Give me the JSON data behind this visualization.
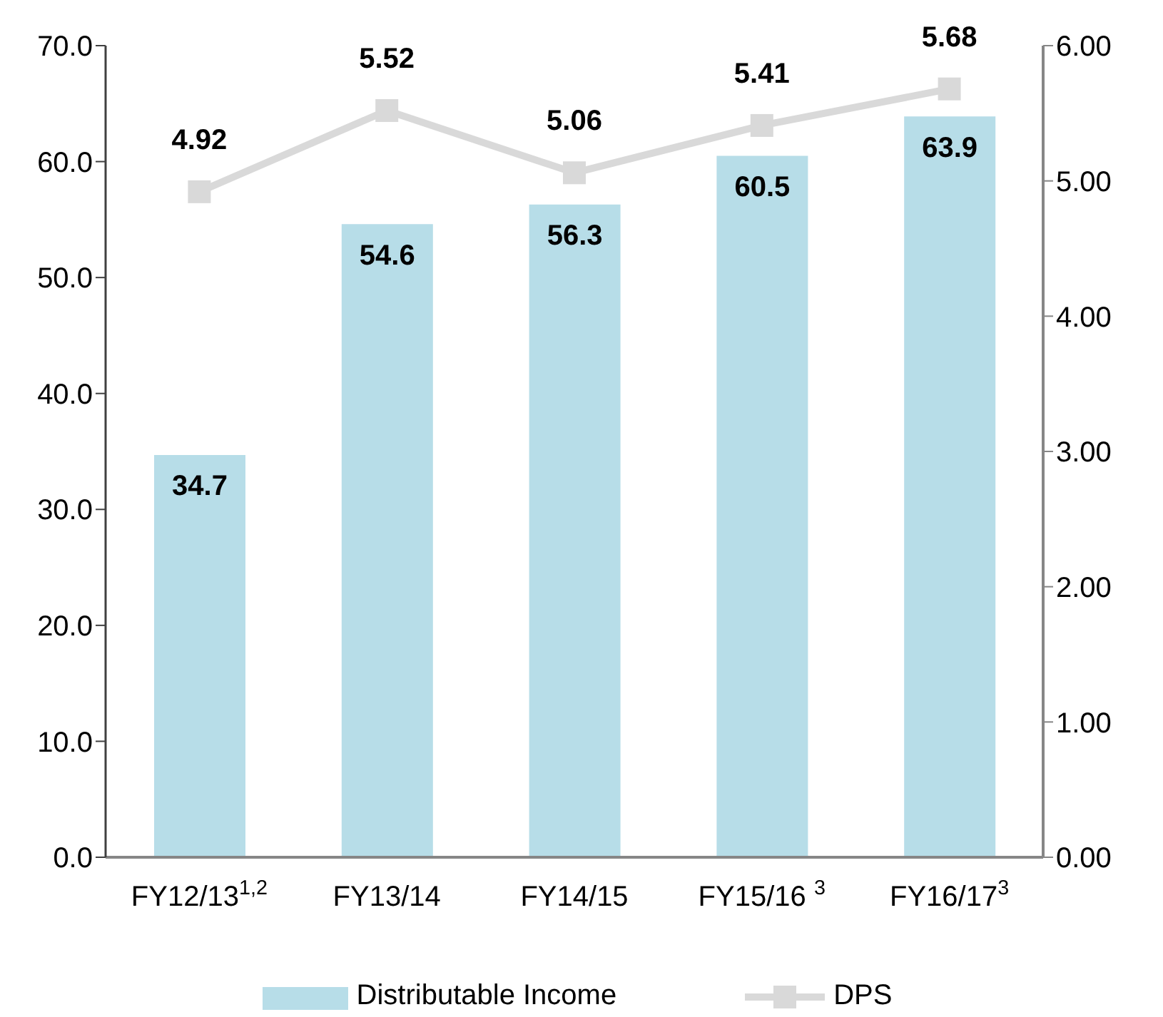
{
  "chart_data": {
    "type": "bar",
    "categories": [
      "FY12/13$^{1,2}$",
      "FY13/14",
      "FY14/15",
      "FY15/16 $^{3}$",
      "FY16/17$^{3}$"
    ],
    "series": [
      {
        "name": "Distributable Income",
        "color": "#b7dde8",
        "values": [
          34.7,
          54.6,
          56.3,
          60.5,
          63.9
        ]
      },
      {
        "name": "DPS",
        "type": "line",
        "axis": "y2",
        "color": "#d9d9d9",
        "values": [
          4.92,
          5.52,
          5.06,
          5.41,
          5.68
        ]
      }
    ],
    "ylim": [
      0,
      70
    ],
    "yticks": [
      {
        "value": 0,
        "label": "0.0"
      },
      {
        "value": 10,
        "label": "10.0"
      },
      {
        "value": 20,
        "label": "20.0"
      },
      {
        "value": 30,
        "label": "30.0"
      },
      {
        "value": 40,
        "label": "40.0"
      },
      {
        "value": 50,
        "label": "50.0"
      },
      {
        "value": 60,
        "label": "60.0"
      },
      {
        "value": 70,
        "label": "70.0"
      }
    ],
    "y2lim": [
      0,
      6
    ],
    "y2ticks": [
      {
        "value": 0,
        "label": "0.00"
      },
      {
        "value": 1,
        "label": "1.00"
      },
      {
        "value": 2,
        "label": "2.00"
      },
      {
        "value": 3,
        "label": "3.00"
      },
      {
        "value": 4,
        "label": "4.00"
      },
      {
        "value": 5,
        "label": "5.00"
      },
      {
        "value": 6,
        "label": "6.00"
      }
    ],
    "data_labels": true,
    "legend": "bottom",
    "grid": false,
    "marker": "square",
    "line_style": "solid"
  }
}
